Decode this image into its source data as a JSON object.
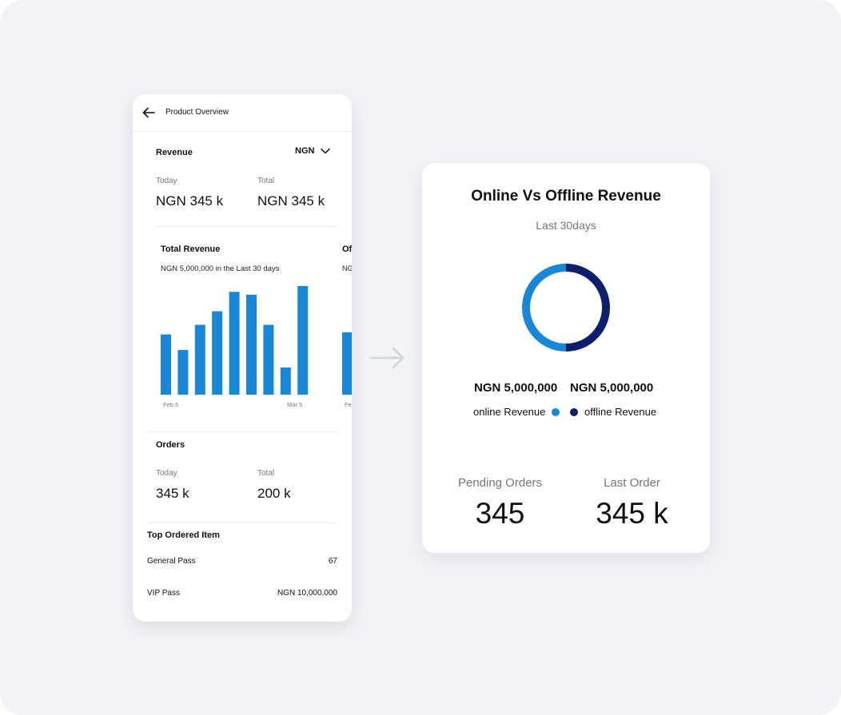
{
  "phone": {
    "title": "Product Overview",
    "revenue": {
      "label": "Revenue",
      "currency": "NGN",
      "today_label": "Today",
      "today_value": "NGN 345 k",
      "total_label": "Total",
      "total_value": "NGN 345 k"
    },
    "total_revenue": {
      "title": "Total Revenue",
      "subtitle": "NGN 5,000,000  in the Last 30 days",
      "next_title_clip": "Of",
      "next_sub_clip": "NG",
      "next_tick_clip": "Fe"
    },
    "orders": {
      "label": "Orders",
      "today_label": "Today",
      "today_value": "345 k",
      "total_label": "Total",
      "total_value": "200 k"
    },
    "top_ordered": {
      "label": "Top Ordered Item",
      "items": [
        {
          "name": "General Pass",
          "value": "67"
        },
        {
          "name": "VIP Pass",
          "value": "NGN 10,000,000"
        }
      ]
    }
  },
  "summary": {
    "title": "Online Vs Offline Revenue",
    "subtitle": "Last 30days",
    "online_amount": "NGN 5,000,000",
    "offline_amount": "NGN 5,000,000",
    "online_label": "online Revenue",
    "offline_label": "offline Revenue",
    "pending_label": "Pending Orders",
    "pending_value": "345",
    "last_label": "Last Order",
    "last_value": "345 k"
  },
  "icons": {
    "back": "arrow-left-icon",
    "currency_dropdown": "chevron-down-icon",
    "flow_arrow": "arrow-right-icon"
  },
  "colors": {
    "bar": "#1a87d6",
    "online": "#1a87d6",
    "offline": "#0d1f6b",
    "background": "#f2f3f7"
  },
  "chart_data": [
    {
      "type": "bar",
      "title": "Total Revenue",
      "categories": [
        "Feb 5",
        "",
        "",
        "",
        "",
        "",
        "",
        "",
        "Mar 5"
      ],
      "values": [
        62,
        46,
        72,
        86,
        106,
        103,
        72,
        28,
        112
      ],
      "x_tick_labels": [
        "Feb 5",
        "Mar 5"
      ],
      "ylim": [
        0,
        112
      ],
      "grid": false
    },
    {
      "type": "pie",
      "title": "Online Vs Offline Revenue",
      "labels": [
        "online Revenue",
        "offline Revenue"
      ],
      "values": [
        5000000,
        5000000
      ],
      "donut": true
    }
  ]
}
